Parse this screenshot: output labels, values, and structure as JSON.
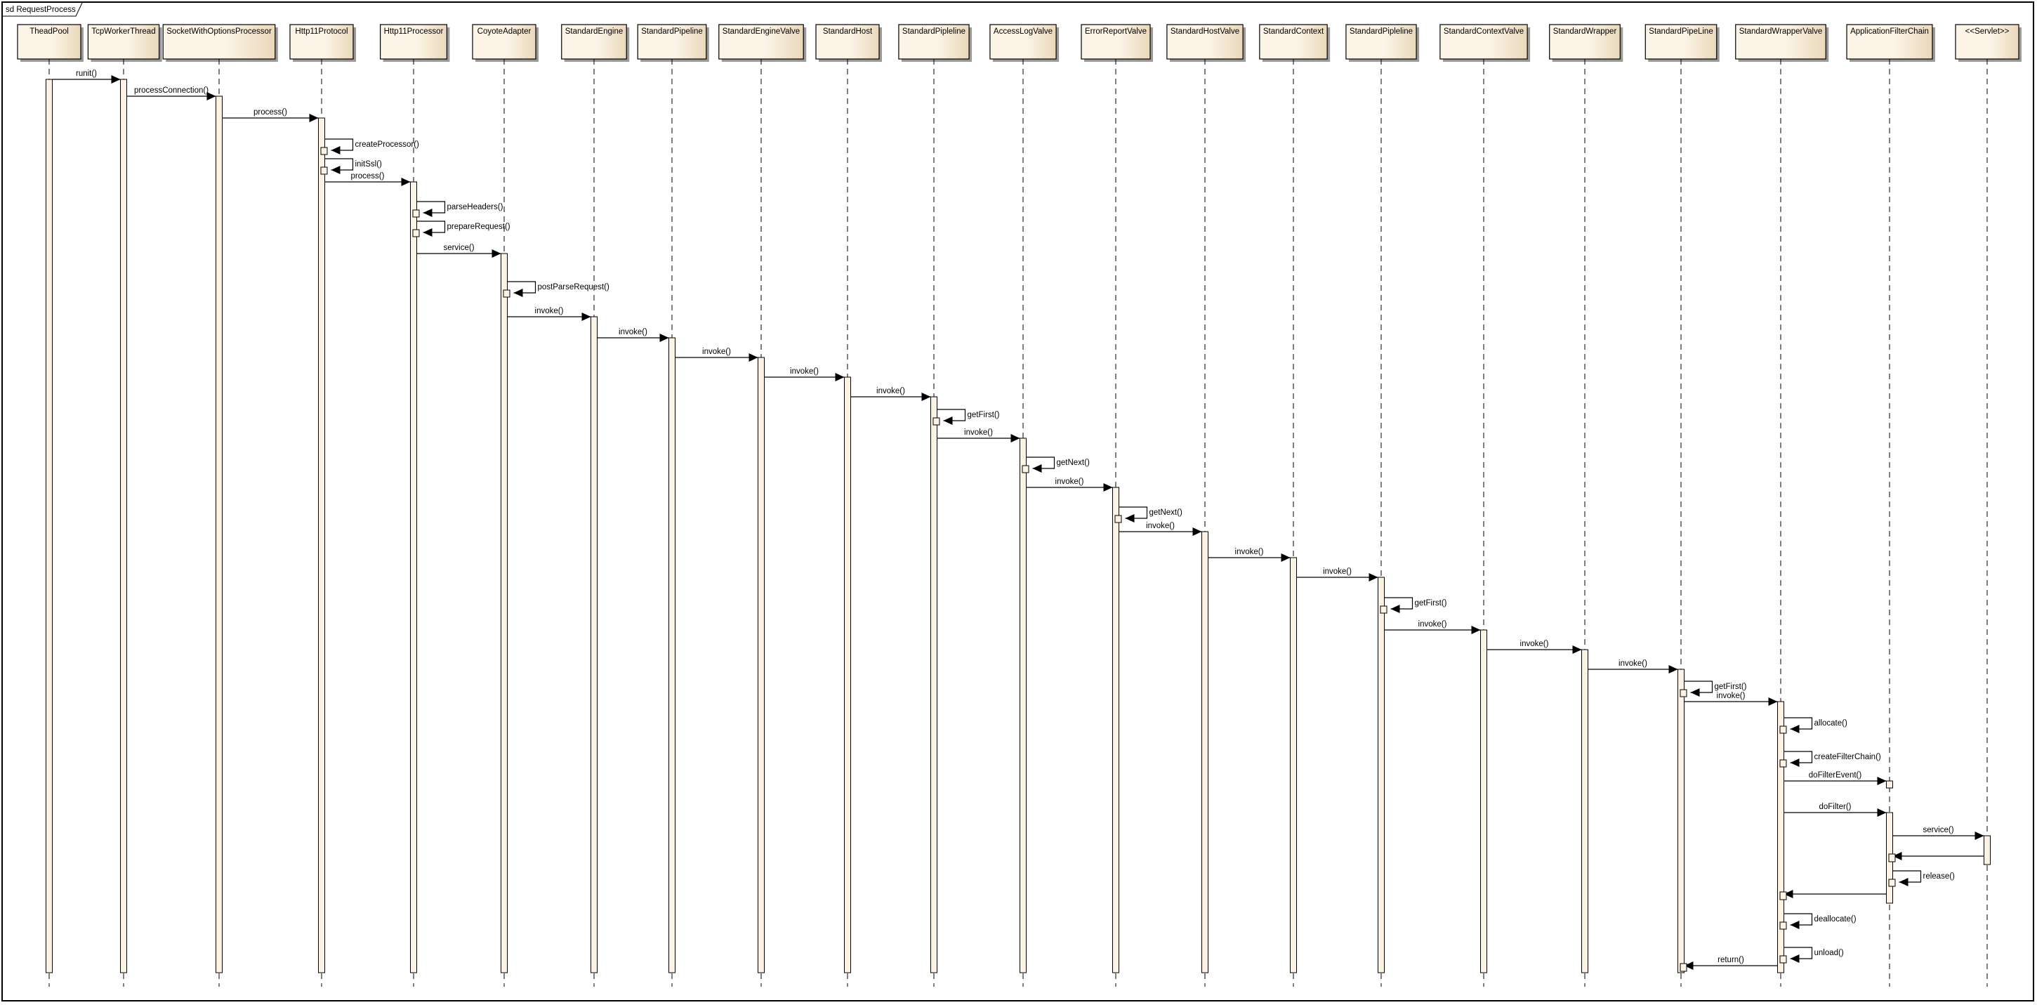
{
  "frame": {
    "title": "sd RequestProcess"
  },
  "colors": {
    "box_fill_light": "#fcf4e6",
    "box_fill_dark": "#e9d8bb",
    "activation_fill": "#fdf3e4",
    "line": "#000000",
    "shadow": "#9a9a9a"
  },
  "lifelines": [
    {
      "name": "TheadPool"
    },
    {
      "name": "TcpWorkerThread"
    },
    {
      "name": "SocketWithOptionsProcessor"
    },
    {
      "name": "Http11Protocol"
    },
    {
      "name": "Http11Processor"
    },
    {
      "name": "CoyoteAdapter"
    },
    {
      "name": "StandardEngine"
    },
    {
      "name": "StandardPipeline"
    },
    {
      "name": "StandardEngineValve"
    },
    {
      "name": "StandardHost"
    },
    {
      "name": "StandardPipleline"
    },
    {
      "name": "AccessLogValve"
    },
    {
      "name": "ErrorReportValve"
    },
    {
      "name": "StandardHostValve"
    },
    {
      "name": "StandardContext"
    },
    {
      "name": "StandardPipleline"
    },
    {
      "name": "StandardContextValve"
    },
    {
      "name": "StandardWrapper"
    },
    {
      "name": "StandardPipeLine"
    },
    {
      "name": "StandardWrapperValve"
    },
    {
      "name": "ApplicationFilterChain"
    },
    {
      "name": "<<Servlet>>"
    }
  ],
  "messages": [
    {
      "from": 0,
      "to": 1,
      "label": "runit()",
      "kind": "call"
    },
    {
      "from": 1,
      "to": 2,
      "label": "processConnection()",
      "kind": "call"
    },
    {
      "from": 2,
      "to": 3,
      "label": "process()",
      "kind": "call"
    },
    {
      "from": 3,
      "to": 3,
      "label": "createProcessor()",
      "kind": "self"
    },
    {
      "from": 3,
      "to": 3,
      "label": "initSsl()",
      "kind": "self"
    },
    {
      "from": 3,
      "to": 4,
      "label": "process()",
      "kind": "call"
    },
    {
      "from": 4,
      "to": 4,
      "label": "parseHeaders()",
      "kind": "self"
    },
    {
      "from": 4,
      "to": 4,
      "label": "prepareRequest()",
      "kind": "self"
    },
    {
      "from": 4,
      "to": 5,
      "label": "service()",
      "kind": "call"
    },
    {
      "from": 5,
      "to": 5,
      "label": "postParseRequest()",
      "kind": "self"
    },
    {
      "from": 5,
      "to": 6,
      "label": "invoke()",
      "kind": "call"
    },
    {
      "from": 6,
      "to": 7,
      "label": "invoke()",
      "kind": "call"
    },
    {
      "from": 7,
      "to": 8,
      "label": "invoke()",
      "kind": "call"
    },
    {
      "from": 8,
      "to": 9,
      "label": "invoke()",
      "kind": "call"
    },
    {
      "from": 9,
      "to": 10,
      "label": "invoke()",
      "kind": "call"
    },
    {
      "from": 10,
      "to": 10,
      "label": "getFirst()",
      "kind": "self"
    },
    {
      "from": 10,
      "to": 11,
      "label": "invoke()",
      "kind": "call"
    },
    {
      "from": 11,
      "to": 11,
      "label": "getNext()",
      "kind": "self"
    },
    {
      "from": 11,
      "to": 12,
      "label": "invoke()",
      "kind": "call"
    },
    {
      "from": 12,
      "to": 12,
      "label": "getNext()",
      "kind": "self"
    },
    {
      "from": 12,
      "to": 13,
      "label": "invoke()",
      "kind": "call"
    },
    {
      "from": 13,
      "to": 14,
      "label": "invoke()",
      "kind": "call"
    },
    {
      "from": 14,
      "to": 15,
      "label": "invoke()",
      "kind": "call"
    },
    {
      "from": 15,
      "to": 15,
      "label": "getFirst()",
      "kind": "self"
    },
    {
      "from": 15,
      "to": 16,
      "label": "invoke()",
      "kind": "call"
    },
    {
      "from": 16,
      "to": 17,
      "label": "invoke()",
      "kind": "call"
    },
    {
      "from": 17,
      "to": 18,
      "label": "invoke()",
      "kind": "call"
    },
    {
      "from": 18,
      "to": 18,
      "label": "getFirst()",
      "kind": "self"
    },
    {
      "from": 18,
      "to": 19,
      "label": "invoke()",
      "kind": "call"
    },
    {
      "from": 19,
      "to": 19,
      "label": "allocate()",
      "kind": "self"
    },
    {
      "from": 19,
      "to": 19,
      "label": "createFilterChain()",
      "kind": "self"
    },
    {
      "from": 19,
      "to": 20,
      "label": "doFilterEvent()",
      "kind": "call"
    },
    {
      "from": 19,
      "to": 20,
      "label": "doFilter()",
      "kind": "call"
    },
    {
      "from": 20,
      "to": 21,
      "label": "service()",
      "kind": "call"
    },
    {
      "from": 21,
      "to": 20,
      "label": "",
      "kind": "return"
    },
    {
      "from": 20,
      "to": 20,
      "label": "release()",
      "kind": "self"
    },
    {
      "from": 20,
      "to": 19,
      "label": "",
      "kind": "return"
    },
    {
      "from": 19,
      "to": 19,
      "label": "deallocate()",
      "kind": "self"
    },
    {
      "from": 19,
      "to": 19,
      "label": "unload()",
      "kind": "self"
    },
    {
      "from": 19,
      "to": 18,
      "label": "return()",
      "kind": "return"
    }
  ]
}
